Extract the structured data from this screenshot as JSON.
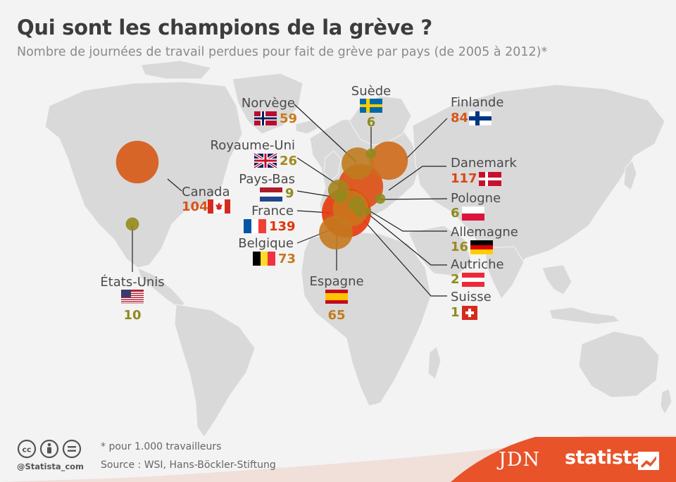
{
  "title": "Qui sont les champions de la grève ?",
  "subtitle": "Nombre de journées de travail perdues pour fait de grève par pays (de 2005 à 2012)*",
  "chart_data": {
    "type": "bubble-map",
    "unit": "journées de travail perdues pour 1.000 travailleurs",
    "series": [
      {
        "country": "Norvège",
        "value": 59
      },
      {
        "country": "Suède",
        "value": 6
      },
      {
        "country": "Finlande",
        "value": 84
      },
      {
        "country": "Royaume-Uni",
        "value": 26
      },
      {
        "country": "Danemark",
        "value": 117
      },
      {
        "country": "Pays-Bas",
        "value": 9
      },
      {
        "country": "Canada",
        "value": 104
      },
      {
        "country": "Pologne",
        "value": 6
      },
      {
        "country": "France",
        "value": 139
      },
      {
        "country": "Allemagne",
        "value": 16
      },
      {
        "country": "Belgique",
        "value": 73
      },
      {
        "country": "Autriche",
        "value": 2
      },
      {
        "country": "États-Unis",
        "value": 10
      },
      {
        "country": "Espagne",
        "value": 65
      },
      {
        "country": "Suisse",
        "value": 1
      }
    ],
    "color_scale": {
      "low": "#8c8c1e",
      "mid": "#c8781e",
      "high": "#e6370a"
    }
  },
  "footer": {
    "note": "* pour 1.000 travailleurs",
    "source": "Source : WSI, Hans-Böckler-Stiftung",
    "handle": "@Statista_com",
    "brand_jdn": "JDN",
    "brand_statista": "statista"
  },
  "colors": {
    "bar": "#e8532a",
    "map": "#d8d8d8",
    "background": "#f3f3f3"
  }
}
